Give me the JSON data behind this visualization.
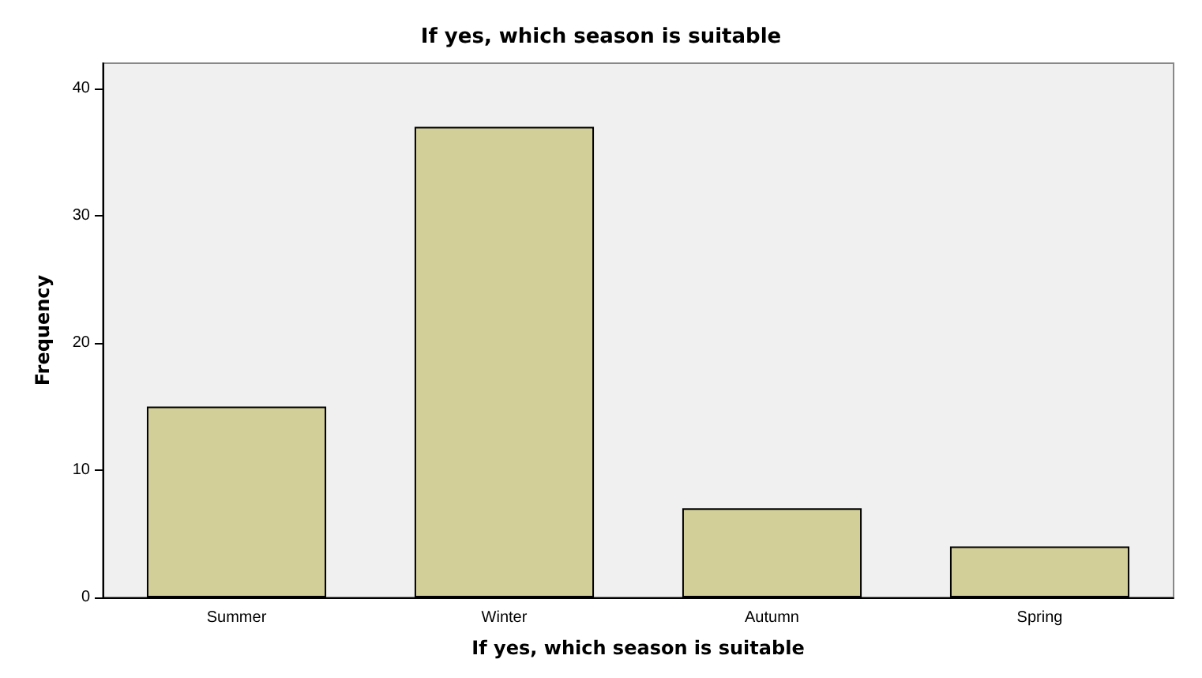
{
  "chart_data": {
    "type": "bar",
    "title": "If yes, which season is suitable",
    "xlabel": "If yes, which season is suitable",
    "ylabel": "Frequency",
    "categories": [
      "Summer",
      "Winter",
      "Autumn",
      "Spring"
    ],
    "values": [
      15,
      37,
      7,
      4
    ],
    "color": "#d3cf98",
    "ylim": [
      0,
      42
    ],
    "yticks": [
      0,
      10,
      20,
      30,
      40
    ],
    "grid": false
  }
}
